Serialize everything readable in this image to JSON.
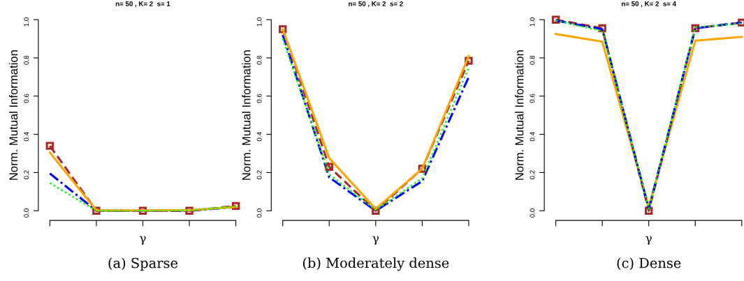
{
  "chart_data": [
    {
      "type": "line",
      "title": "n= 50 , K= 2  s= 1",
      "xlabel": "γ",
      "ylabel": "Norm. Mutual Information",
      "annotations": [
        "(a) Sparse"
      ],
      "categories": [
        null,
        null,
        null,
        null,
        null
      ],
      "ylim": [
        0,
        1
      ],
      "yticks": [
        {
          "value": 0,
          "label": "0.0"
        },
        {
          "value": 0.2,
          "label": "0.2"
        },
        {
          "value": 0.4,
          "label": "0.4"
        },
        {
          "value": 0.6,
          "label": "0.6"
        },
        {
          "value": 0.8,
          "label": "0.8"
        },
        {
          "value": 1,
          "label": "1.0"
        }
      ],
      "grid": false,
      "legend": false,
      "series": [
        {
          "color": "#00ff00",
          "line_style": "dotted",
          "marker": "none",
          "values": [
            0.145,
            0,
            0,
            0.002,
            0.022
          ]
        },
        {
          "color": "#0000ff",
          "line_style": "dashdot",
          "marker": "none",
          "values": [
            0.195,
            0,
            0,
            0,
            0.02
          ]
        },
        {
          "color": "#a52a2a",
          "line_style": "dashed",
          "marker": "square",
          "values": [
            0.34,
            0,
            0,
            0,
            0.025
          ]
        },
        {
          "color": "#ffa500",
          "line_style": "solid",
          "marker": "none",
          "values": [
            0.305,
            0.002,
            0.002,
            0.003,
            0.02
          ]
        }
      ]
    },
    {
      "type": "line",
      "title": "n= 50 , K= 2  s= 2",
      "xlabel": "γ",
      "ylabel": "Norm. Mutual Information",
      "annotations": [
        "(b) Moderately dense"
      ],
      "categories": [
        null,
        null,
        null,
        null,
        null
      ],
      "ylim": [
        0,
        1
      ],
      "yticks": [
        {
          "value": 0,
          "label": "0.0"
        },
        {
          "value": 0.2,
          "label": "0.2"
        },
        {
          "value": 0.4,
          "label": "0.4"
        },
        {
          "value": 0.6,
          "label": "0.6"
        },
        {
          "value": 0.8,
          "label": "0.8"
        },
        {
          "value": 1,
          "label": "1.0"
        }
      ],
      "grid": false,
      "legend": false,
      "series": [
        {
          "color": "#00ff00",
          "line_style": "dotted",
          "marker": "none",
          "values": [
            0.9,
            0.19,
            0.005,
            0.17,
            0.75
          ]
        },
        {
          "color": "#0000ff",
          "line_style": "dashdot",
          "marker": "none",
          "values": [
            0.92,
            0.175,
            0,
            0.155,
            0.7
          ]
        },
        {
          "color": "#a52a2a",
          "line_style": "dashed",
          "marker": "square",
          "values": [
            0.95,
            0.23,
            0,
            0.22,
            0.785
          ]
        },
        {
          "color": "#ffa500",
          "line_style": "solid",
          "marker": "none",
          "values": [
            0.95,
            0.275,
            0.01,
            0.22,
            0.81
          ]
        }
      ]
    },
    {
      "type": "line",
      "title": "n= 50 , K= 2  s= 4",
      "xlabel": "γ",
      "ylabel": "Norm. Mutual Information",
      "annotations": [
        "(c) Dense"
      ],
      "categories": [
        null,
        null,
        null,
        null,
        null
      ],
      "ylim": [
        0,
        1
      ],
      "yticks": [
        {
          "value": 0,
          "label": "0.0"
        },
        {
          "value": 0.2,
          "label": "0.2"
        },
        {
          "value": 0.4,
          "label": "0.4"
        },
        {
          "value": 0.6,
          "label": "0.6"
        },
        {
          "value": 0.8,
          "label": "0.8"
        },
        {
          "value": 1,
          "label": "1.0"
        }
      ],
      "grid": false,
      "legend": false,
      "series": [
        {
          "color": "#ffa500",
          "line_style": "solid",
          "marker": "none",
          "values": [
            0.925,
            0.885,
            0.02,
            0.89,
            0.91
          ]
        },
        {
          "color": "#a52a2a",
          "line_style": "dashed",
          "marker": "square",
          "values": [
            1.0,
            0.955,
            0,
            0.955,
            0.985
          ]
        },
        {
          "color": "#00ff00",
          "line_style": "dotted",
          "marker": "none",
          "values": [
            0.995,
            0.94,
            0.01,
            0.96,
            0.98
          ]
        },
        {
          "color": "#0000ff",
          "line_style": "dashdot",
          "marker": "none",
          "values": [
            0.995,
            0.95,
            0.01,
            0.955,
            0.985
          ]
        }
      ]
    }
  ]
}
